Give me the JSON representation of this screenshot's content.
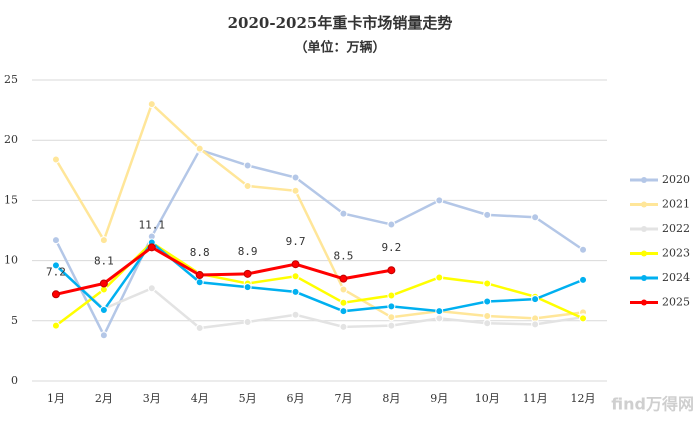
{
  "chart_data": {
    "type": "line",
    "title": "2020-2025年重卡市场销量走势",
    "subtitle": "（单位：万辆）",
    "watermark": "find万得网",
    "categories": [
      "1月",
      "2月",
      "3月",
      "4月",
      "5月",
      "6月",
      "7月",
      "8月",
      "9月",
      "10月",
      "11月",
      "12月"
    ],
    "ylim": [
      0,
      25
    ],
    "yticks": [
      0,
      5,
      10,
      15,
      20,
      25
    ],
    "grid": true,
    "legend": "right",
    "series": [
      {
        "name": "2020",
        "color": "#b4c7e7",
        "values": [
          11.7,
          3.8,
          12.0,
          19.2,
          17.9,
          16.9,
          13.9,
          13.0,
          15.0,
          13.8,
          13.6,
          10.9
        ]
      },
      {
        "name": "2021",
        "color": "#ffe699",
        "values": [
          18.4,
          11.7,
          23.0,
          19.3,
          16.2,
          15.8,
          7.6,
          5.3,
          5.8,
          5.4,
          5.2,
          5.7
        ]
      },
      {
        "name": "2022",
        "color": "#e3e3e3",
        "values": [
          9.6,
          6.0,
          7.7,
          4.4,
          4.9,
          5.5,
          4.5,
          4.6,
          5.2,
          4.8,
          4.7,
          5.3
        ]
      },
      {
        "name": "2023",
        "color": "#ffff00",
        "values": [
          4.6,
          7.6,
          11.5,
          8.9,
          8.1,
          8.7,
          6.5,
          7.1,
          8.6,
          8.1,
          7.0,
          5.2
        ]
      },
      {
        "name": "2024",
        "color": "#00b0f0",
        "values": [
          9.6,
          5.9,
          11.5,
          8.2,
          7.8,
          7.4,
          5.8,
          6.2,
          5.8,
          6.6,
          6.8,
          8.4
        ]
      },
      {
        "name": "2025",
        "color": "#ff0000",
        "labels": true,
        "values": [
          7.2,
          8.1,
          11.1,
          8.8,
          8.9,
          9.7,
          8.5,
          9.2,
          null,
          null,
          null,
          null
        ]
      }
    ]
  }
}
